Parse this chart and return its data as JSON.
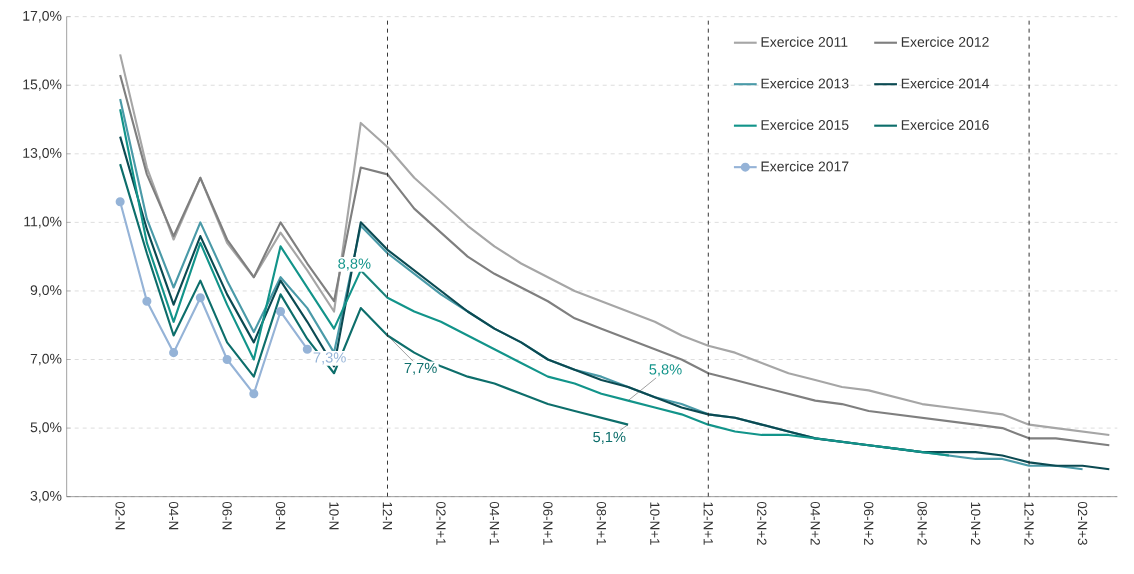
{
  "chart_data": {
    "type": "line",
    "categories": [
      "02-N",
      null,
      "04-N",
      null,
      "06-N",
      null,
      "08-N",
      null,
      "10-N",
      null,
      "12-N",
      null,
      "02-N+1",
      null,
      "04-N+1",
      null,
      "06-N+1",
      null,
      "08-N+1",
      null,
      "10-N+1",
      null,
      "12-N+1",
      null,
      "02-N+2",
      null,
      "04-N+2",
      null,
      "06-N+2",
      null,
      "08-N+2",
      null,
      "10-N+2",
      null,
      "12-N+2",
      null,
      "02-N+3",
      null
    ],
    "series": [
      {
        "name": "Exercice 2011",
        "color": "#a6a6a6",
        "values": [
          15.9,
          12.6,
          10.5,
          12.3,
          10.4,
          9.4,
          10.7,
          9.6,
          8.4,
          13.9,
          13.2,
          12.3,
          11.6,
          10.9,
          10.3,
          9.8,
          9.4,
          9.0,
          8.7,
          8.4,
          8.1,
          7.7,
          7.4,
          7.2,
          6.9,
          6.6,
          6.4,
          6.2,
          6.1,
          5.9,
          5.7,
          5.6,
          5.5,
          5.4,
          5.1,
          5.0,
          4.9,
          4.8
        ]
      },
      {
        "name": "Exercice 2012",
        "color": "#7f7f7f",
        "values": [
          15.3,
          12.4,
          10.6,
          12.3,
          10.5,
          9.4,
          11.0,
          9.8,
          8.7,
          12.6,
          12.4,
          11.4,
          10.7,
          10.0,
          9.5,
          9.1,
          8.7,
          8.2,
          7.9,
          7.6,
          7.3,
          7.0,
          6.6,
          6.4,
          6.2,
          6.0,
          5.8,
          5.7,
          5.5,
          5.4,
          5.3,
          5.2,
          5.1,
          5.0,
          4.7,
          4.7,
          4.6,
          4.5
        ]
      },
      {
        "name": "Exercice 2013",
        "color": "#4a9aa8",
        "values": [
          14.6,
          11.1,
          9.1,
          11.0,
          9.3,
          7.8,
          9.4,
          8.5,
          7.2,
          10.9,
          10.1,
          9.5,
          8.9,
          8.4,
          7.9,
          7.5,
          7.0,
          6.7,
          6.5,
          6.2,
          5.9,
          5.7,
          5.4,
          5.3,
          5.1,
          4.9,
          4.7,
          4.6,
          4.5,
          4.4,
          4.3,
          4.2,
          4.1,
          4.1,
          3.9,
          3.9,
          3.8,
          null
        ]
      },
      {
        "name": "Exercice 2014",
        "color": "#0b4a52",
        "values": [
          13.5,
          10.8,
          8.6,
          10.6,
          8.9,
          7.5,
          9.3,
          8.1,
          6.8,
          11.0,
          10.2,
          9.6,
          9.0,
          8.4,
          7.9,
          7.5,
          7.0,
          6.7,
          6.4,
          6.2,
          5.9,
          5.6,
          5.4,
          5.3,
          5.1,
          4.9,
          4.7,
          4.6,
          4.5,
          4.4,
          4.3,
          4.3,
          4.3,
          4.2,
          4.0,
          3.9,
          3.9,
          3.8
        ]
      },
      {
        "name": "Exercice 2015",
        "color": "#12948a",
        "values": [
          14.3,
          10.4,
          8.1,
          10.4,
          8.6,
          7.0,
          10.3,
          9.1,
          7.9,
          9.6,
          8.8,
          8.4,
          8.1,
          7.7,
          7.3,
          6.9,
          6.5,
          6.3,
          6.0,
          5.8,
          5.6,
          5.4,
          5.1,
          4.9,
          4.8,
          4.8,
          4.7,
          4.6,
          4.5,
          4.4,
          4.3,
          4.2,
          null,
          null,
          null,
          null,
          null,
          null
        ]
      },
      {
        "name": "Exercice 2016",
        "color": "#0d6e6b",
        "values": [
          12.7,
          10.1,
          7.7,
          9.3,
          7.5,
          6.5,
          8.9,
          7.6,
          6.6,
          8.5,
          7.7,
          7.2,
          6.8,
          6.5,
          6.3,
          6.0,
          5.7,
          5.5,
          5.3,
          5.1,
          null,
          null,
          null,
          null,
          null,
          null,
          null,
          null,
          null,
          null,
          null,
          null,
          null,
          null,
          null,
          null,
          null,
          null
        ]
      },
      {
        "name": "Exercice 2017",
        "color": "#95b3d7",
        "marker": "circle",
        "values": [
          11.6,
          8.7,
          7.2,
          8.8,
          7.0,
          6.0,
          8.4,
          7.3,
          null,
          null,
          null,
          null,
          null,
          null,
          null,
          null,
          null,
          null,
          null,
          null,
          null,
          null,
          null,
          null,
          null,
          null,
          null,
          null,
          null,
          null,
          null,
          null,
          null,
          null,
          null,
          null,
          null,
          null
        ]
      }
    ],
    "ylim": [
      3,
      17
    ],
    "yticks": [
      {
        "value": 3,
        "label": "3,0%"
      },
      {
        "value": 5,
        "label": "5,0%"
      },
      {
        "value": 7,
        "label": "7,0%"
      },
      {
        "value": 9,
        "label": "9,0%"
      },
      {
        "value": 11,
        "label": "11,0%"
      },
      {
        "value": 13,
        "label": "13,0%"
      },
      {
        "value": 15,
        "label": "15,0%"
      },
      {
        "value": 17,
        "label": "17,0%"
      }
    ],
    "grid": "y",
    "legend": "top right",
    "marker": "none",
    "ref_lines": [
      {
        "axis": "x",
        "value": "12-N",
        "line_style": "dashed"
      },
      {
        "axis": "x",
        "value": "12-N+1",
        "line_style": "dashed"
      },
      {
        "axis": "x",
        "value": "12-N+2",
        "line_style": "dashed"
      }
    ],
    "annotations": [
      {
        "text": "8,8%",
        "x": "12-N",
        "y": 8.8
      },
      {
        "text": "7,7%",
        "x": "12-N",
        "y": 7.7
      },
      {
        "text": "7,3%",
        "y": 7.3
      },
      {
        "text": "5,8%",
        "y": 5.8
      },
      {
        "text": "5,1%",
        "y": 5.1
      }
    ]
  }
}
